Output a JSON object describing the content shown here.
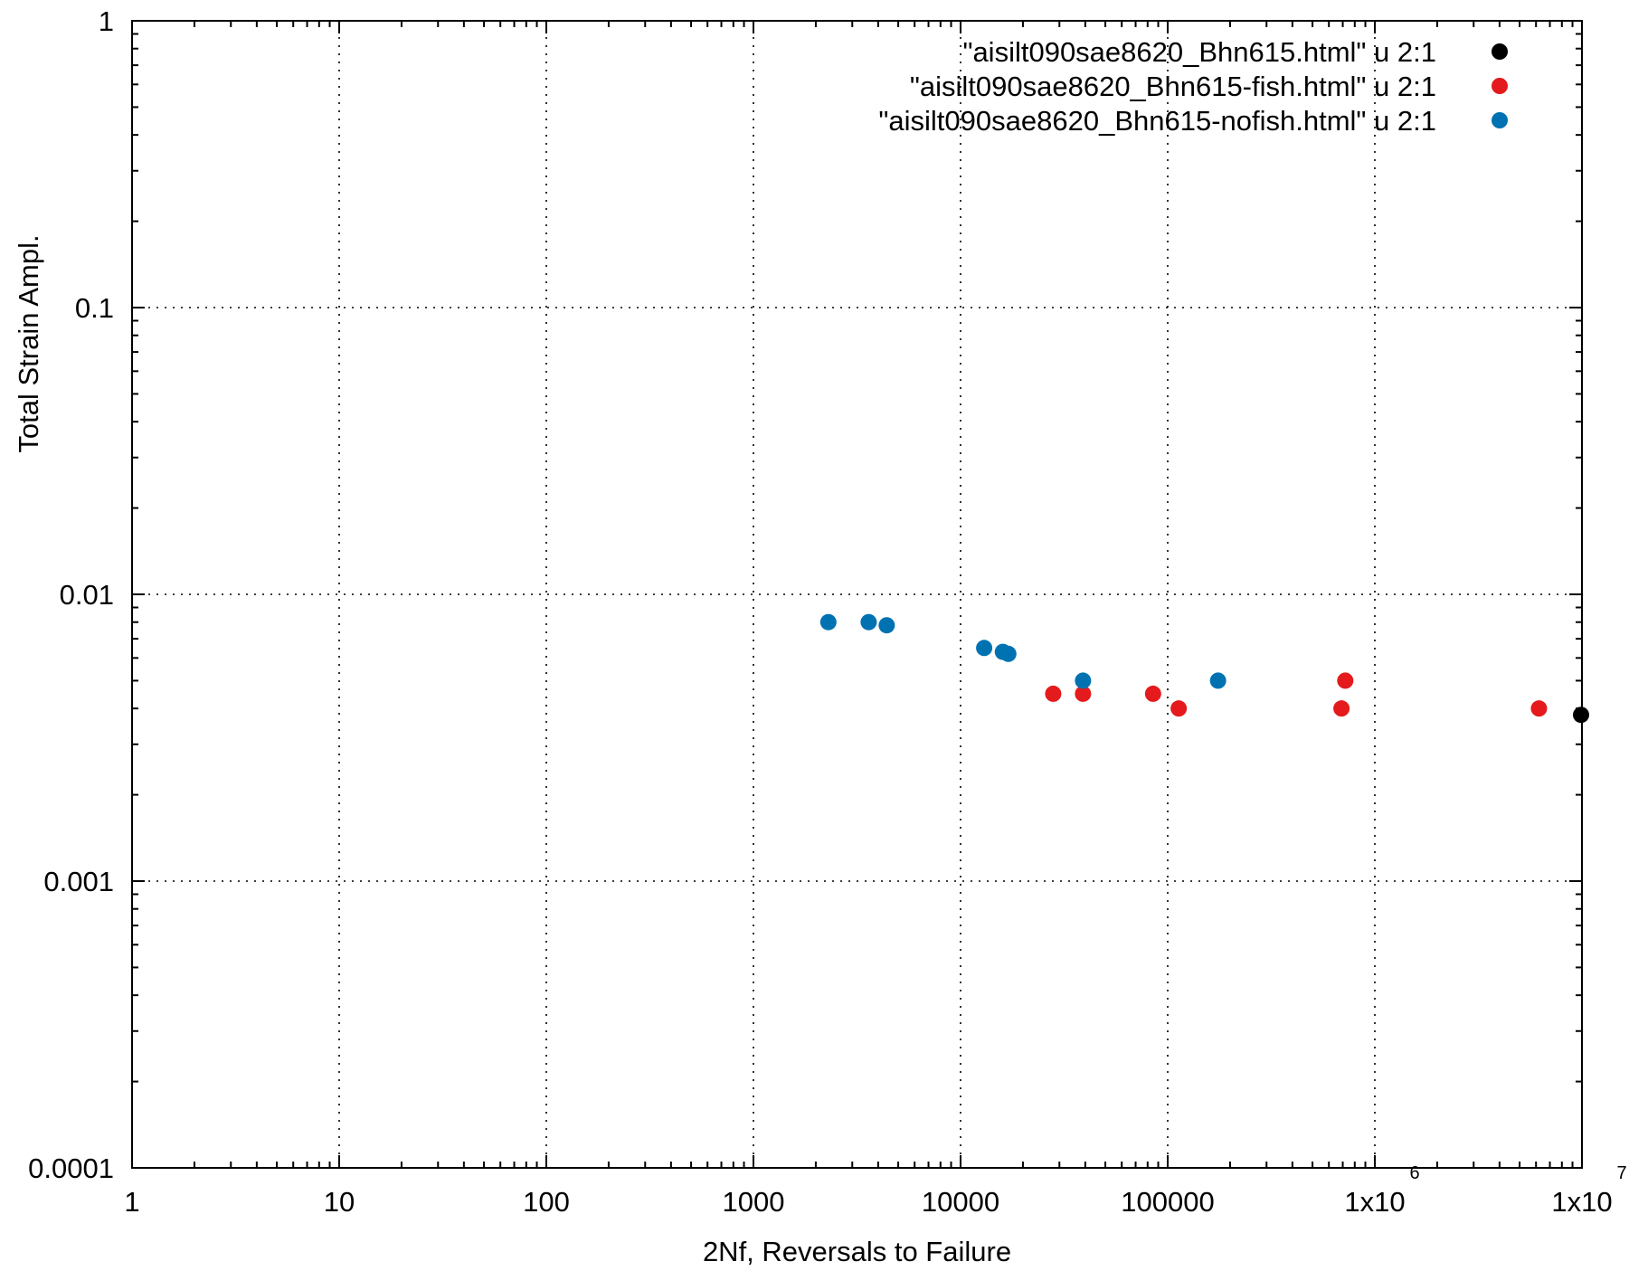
{
  "chart_data": {
    "type": "scatter",
    "title": "",
    "xlabel": "2Nf, Reversals to Failure",
    "ylabel": "Total Strain Ampl.",
    "xscale": "log",
    "yscale": "log",
    "xlim": [
      1,
      10000000
    ],
    "ylim": [
      0.0001,
      1
    ],
    "grid": true,
    "legend_position": "top-right",
    "x_ticks": [
      {
        "value": 1,
        "label": "1",
        "exp": ""
      },
      {
        "value": 10,
        "label": "10",
        "exp": ""
      },
      {
        "value": 100,
        "label": "100",
        "exp": ""
      },
      {
        "value": 1000,
        "label": "1000",
        "exp": ""
      },
      {
        "value": 10000,
        "label": "10000",
        "exp": ""
      },
      {
        "value": 100000,
        "label": "100000",
        "exp": ""
      },
      {
        "value": 1000000,
        "label": "1x10",
        "exp": "6"
      },
      {
        "value": 10000000,
        "label": "1x10",
        "exp": "7"
      }
    ],
    "y_ticks": [
      {
        "value": 0.0001,
        "label": "0.0001"
      },
      {
        "value": 0.001,
        "label": "0.001"
      },
      {
        "value": 0.01,
        "label": "0.01"
      },
      {
        "value": 0.1,
        "label": "0.1"
      },
      {
        "value": 1,
        "label": "1"
      }
    ],
    "series": [
      {
        "name": "\"aisilt090sae8620_Bhn615.html\" u 2:1",
        "color": "#000000",
        "points": [
          {
            "x": 9900000,
            "y": 0.0038
          }
        ]
      },
      {
        "name": "\"aisilt090sae8620_Bhn615-fish.html\" u 2:1",
        "color": "#e41a1c",
        "points": [
          {
            "x": 28000,
            "y": 0.0045
          },
          {
            "x": 39000,
            "y": 0.0045
          },
          {
            "x": 85000,
            "y": 0.0045
          },
          {
            "x": 113000,
            "y": 0.004
          },
          {
            "x": 690000,
            "y": 0.004
          },
          {
            "x": 720000,
            "y": 0.005
          },
          {
            "x": 6200000,
            "y": 0.004
          }
        ]
      },
      {
        "name": "\"aisilt090sae8620_Bhn615-nofish.html\" u 2:1",
        "color": "#0072b2",
        "points": [
          {
            "x": 2300,
            "y": 0.008
          },
          {
            "x": 3600,
            "y": 0.008
          },
          {
            "x": 4400,
            "y": 0.0078
          },
          {
            "x": 13000,
            "y": 0.0065
          },
          {
            "x": 16000,
            "y": 0.0063
          },
          {
            "x": 17000,
            "y": 0.0062
          },
          {
            "x": 39000,
            "y": 0.005
          },
          {
            "x": 175000,
            "y": 0.005
          }
        ]
      }
    ]
  }
}
